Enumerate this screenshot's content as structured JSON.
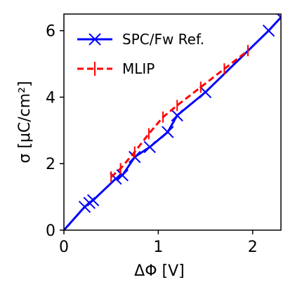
{
  "chart_data": {
    "type": "line",
    "xlabel": "ΔΦ [V]",
    "ylabel": "σ [μC/cm²]",
    "xlim": [
      0,
      2.3
    ],
    "ylim": [
      0,
      6.5
    ],
    "xticks": [
      "0",
      "1",
      "2"
    ],
    "yticks": [
      "0",
      "2",
      "4",
      "6"
    ],
    "grid": false,
    "legend_position": "top-left",
    "series": [
      {
        "name": "SPC/Fw Ref.",
        "color": "#0000ff",
        "line_style": "solid",
        "marker": "x",
        "x": [
          0,
          0.22,
          0.27,
          0.31,
          0.55,
          0.62,
          0.75,
          0.91,
          1.1,
          1.2,
          1.5,
          2.17,
          2.3
        ],
        "y": [
          0,
          0.7,
          0.82,
          0.9,
          1.55,
          1.65,
          2.2,
          2.5,
          2.95,
          3.45,
          4.15,
          6.0,
          6.4
        ]
      },
      {
        "name": "MLIP",
        "color": "#ff0000",
        "line_style": "dashed",
        "marker": "|",
        "x": [
          0.5,
          0.6,
          0.75,
          0.9,
          1.05,
          1.2,
          1.45,
          1.7,
          1.95
        ],
        "y": [
          1.6,
          1.85,
          2.35,
          2.9,
          3.4,
          3.75,
          4.3,
          4.85,
          5.4
        ]
      }
    ]
  }
}
